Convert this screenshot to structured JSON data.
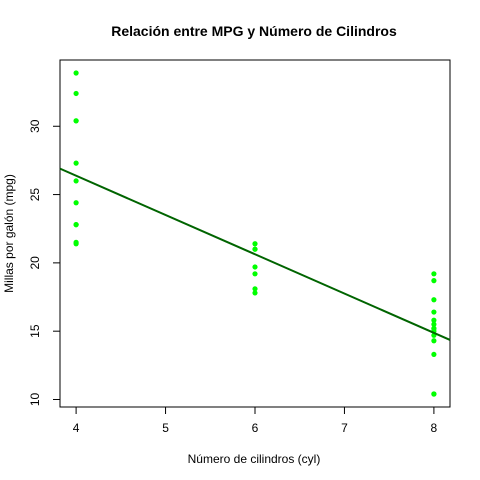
{
  "chart_data": {
    "type": "scatter",
    "title": "Relación entre MPG y Número de Cilindros",
    "xlabel": "Número de cilindros (cyl)",
    "ylabel": "Millas por galón (mpg)",
    "xlim": [
      3.82,
      8.18
    ],
    "ylim": [
      9.45,
      34.85
    ],
    "xticks": [
      4,
      5,
      6,
      7,
      8
    ],
    "yticks": [
      10,
      15,
      20,
      25,
      30
    ],
    "grid": false,
    "series": [
      {
        "values": [
          {
            "x": 4,
            "y": 33.9
          },
          {
            "x": 4,
            "y": 32.4
          },
          {
            "x": 4,
            "y": 30.4
          },
          {
            "x": 4,
            "y": 30.4
          },
          {
            "x": 4,
            "y": 27.3
          },
          {
            "x": 4,
            "y": 26.0
          },
          {
            "x": 4,
            "y": 24.4
          },
          {
            "x": 4,
            "y": 22.8
          },
          {
            "x": 4,
            "y": 22.8
          },
          {
            "x": 4,
            "y": 21.5
          },
          {
            "x": 4,
            "y": 21.4
          },
          {
            "x": 6,
            "y": 21.4
          },
          {
            "x": 6,
            "y": 21.0
          },
          {
            "x": 6,
            "y": 21.0
          },
          {
            "x": 6,
            "y": 19.7
          },
          {
            "x": 6,
            "y": 19.2
          },
          {
            "x": 6,
            "y": 18.1
          },
          {
            "x": 6,
            "y": 17.8
          },
          {
            "x": 8,
            "y": 19.2
          },
          {
            "x": 8,
            "y": 18.7
          },
          {
            "x": 8,
            "y": 17.3
          },
          {
            "x": 8,
            "y": 16.4
          },
          {
            "x": 8,
            "y": 15.8
          },
          {
            "x": 8,
            "y": 15.5
          },
          {
            "x": 8,
            "y": 15.2
          },
          {
            "x": 8,
            "y": 15.2
          },
          {
            "x": 8,
            "y": 15.0
          },
          {
            "x": 8,
            "y": 14.7
          },
          {
            "x": 8,
            "y": 14.3
          },
          {
            "x": 8,
            "y": 13.3
          },
          {
            "x": 8,
            "y": 10.4
          },
          {
            "x": 8,
            "y": 10.4
          }
        ],
        "color": "#00ff00"
      }
    ],
    "regression_line": {
      "intercept": 37.885,
      "slope": -2.876,
      "color": "#006400"
    }
  }
}
